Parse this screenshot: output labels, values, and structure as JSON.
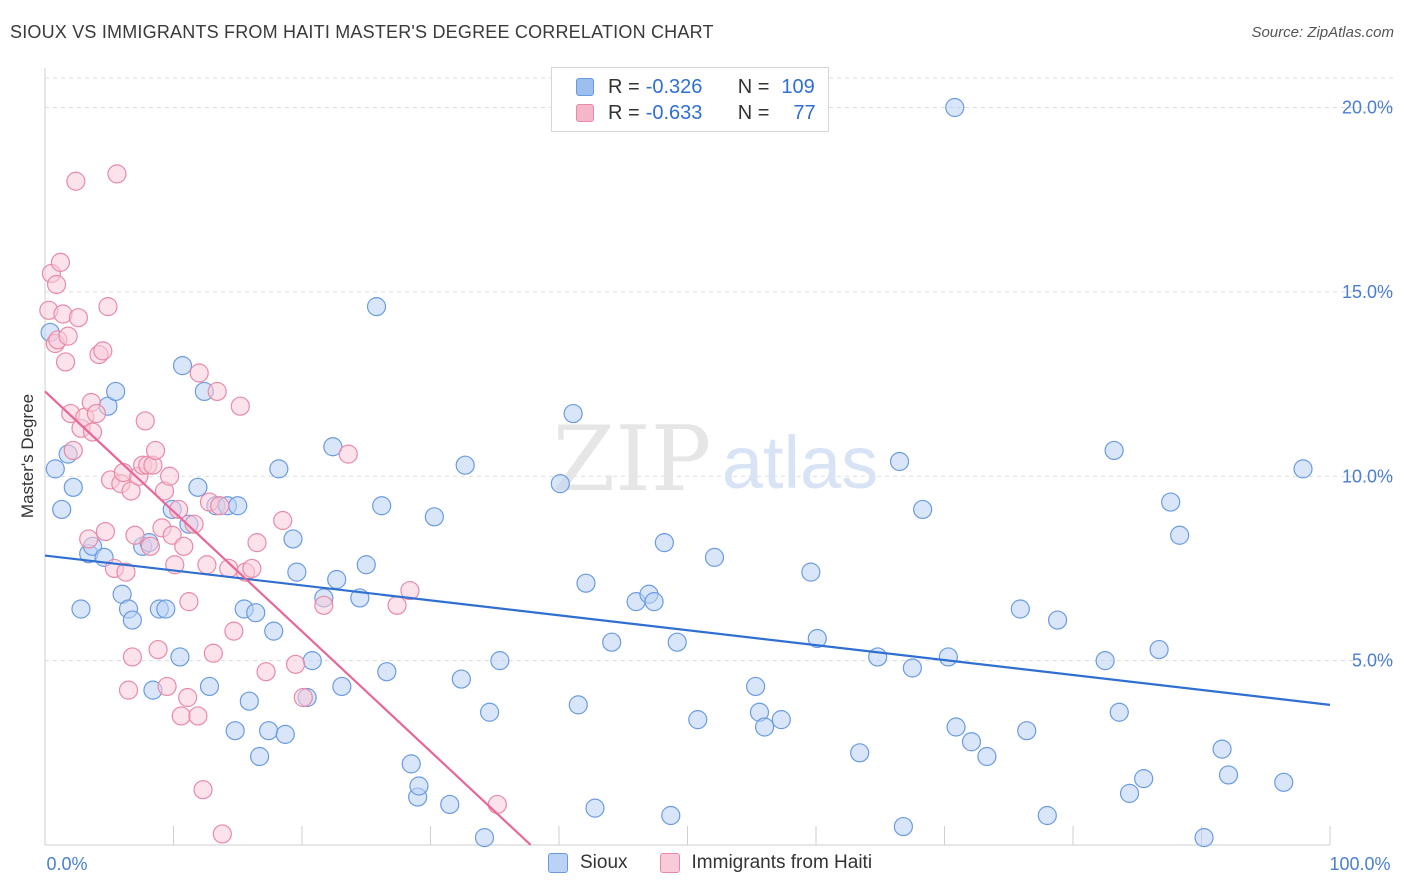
{
  "header": {
    "title": "SIOUX VS IMMIGRANTS FROM HAITI MASTER'S DEGREE CORRELATION CHART",
    "source": "Source: ZipAtlas.com"
  },
  "legend": {
    "rows": [
      {
        "r_label": "R = ",
        "r_value": "-0.326",
        "n_label": "N = ",
        "n_value": "109",
        "color": "#9dbff0",
        "border": "#6a9be0"
      },
      {
        "r_label": "R = ",
        "r_value": "-0.633",
        "n_label": "N = ",
        "n_value": "77",
        "color": "#f6b6c9",
        "border": "#e88aa6"
      }
    ]
  },
  "bottom_legend": [
    {
      "label": "Sioux",
      "color": "#b9d2f5",
      "border": "#6a9be0"
    },
    {
      "label": "Immigrants from Haiti",
      "color": "#f9cbd8",
      "border": "#e88aa6"
    }
  ],
  "watermark": {
    "zip": "ZIP",
    "atlas": "atlas"
  },
  "chart_data": {
    "type": "scatter",
    "title": "SIOUX VS IMMIGRANTS FROM HAITI MASTER'S DEGREE CORRELATION CHART",
    "xlabel": "",
    "ylabel": "Master's Degree",
    "xlim": [
      0,
      100
    ],
    "ylim": [
      0,
      20.8
    ],
    "x_tick_labels": [
      {
        "value": 0,
        "label": "0.0%"
      },
      {
        "value": 100,
        "label": "100.0%"
      }
    ],
    "y_tick_labels": [
      {
        "value": 5,
        "label": "5.0%"
      },
      {
        "value": 10,
        "label": "10.0%"
      },
      {
        "value": 15,
        "label": "15.0%"
      },
      {
        "value": 20,
        "label": "20.0%"
      }
    ],
    "series": [
      {
        "name": "Sioux",
        "color": "#6a9be0",
        "fill": "#b9d2f5",
        "trend": {
          "x0": 0,
          "y0": 7.85,
          "x1": 100,
          "y1": 3.8,
          "color": "#2f6fd1"
        },
        "points": [
          [
            0.4,
            13.9
          ],
          [
            0.8,
            10.2
          ],
          [
            1.3,
            9.1
          ],
          [
            1.8,
            10.6
          ],
          [
            2.2,
            9.7
          ],
          [
            2.8,
            6.4
          ],
          [
            3.4,
            7.9
          ],
          [
            3.7,
            8.1
          ],
          [
            4.6,
            7.8
          ],
          [
            4.9,
            11.9
          ],
          [
            5.5,
            12.3
          ],
          [
            6.0,
            6.8
          ],
          [
            6.5,
            6.4
          ],
          [
            6.8,
            6.1
          ],
          [
            7.6,
            8.1
          ],
          [
            8.1,
            8.2
          ],
          [
            8.4,
            4.2
          ],
          [
            8.9,
            6.4
          ],
          [
            9.4,
            6.4
          ],
          [
            9.9,
            9.1
          ],
          [
            10.5,
            5.1
          ],
          [
            10.7,
            13.0
          ],
          [
            11.2,
            8.7
          ],
          [
            11.9,
            9.7
          ],
          [
            12.4,
            12.3
          ],
          [
            12.8,
            4.3
          ],
          [
            13.3,
            9.2
          ],
          [
            14.2,
            9.2
          ],
          [
            14.8,
            3.1
          ],
          [
            15.0,
            9.2
          ],
          [
            15.5,
            6.4
          ],
          [
            15.9,
            3.9
          ],
          [
            16.4,
            6.3
          ],
          [
            16.7,
            2.4
          ],
          [
            17.4,
            3.1
          ],
          [
            17.8,
            5.8
          ],
          [
            18.2,
            10.2
          ],
          [
            18.7,
            3.0
          ],
          [
            19.3,
            8.3
          ],
          [
            19.6,
            7.4
          ],
          [
            20.4,
            4.0
          ],
          [
            20.8,
            5.0
          ],
          [
            21.7,
            6.7
          ],
          [
            22.4,
            10.8
          ],
          [
            22.7,
            7.2
          ],
          [
            23.1,
            4.3
          ],
          [
            24.5,
            6.7
          ],
          [
            25.0,
            7.6
          ],
          [
            25.8,
            14.6
          ],
          [
            26.2,
            9.2
          ],
          [
            26.6,
            4.7
          ],
          [
            28.5,
            2.2
          ],
          [
            29.0,
            1.3
          ],
          [
            29.1,
            1.6
          ],
          [
            30.3,
            8.9
          ],
          [
            31.5,
            1.1
          ],
          [
            32.4,
            4.5
          ],
          [
            32.7,
            10.3
          ],
          [
            34.2,
            0.2
          ],
          [
            34.6,
            3.6
          ],
          [
            35.4,
            5.0
          ],
          [
            40.1,
            9.8
          ],
          [
            41.1,
            11.7
          ],
          [
            41.5,
            3.8
          ],
          [
            42.1,
            7.1
          ],
          [
            42.8,
            1.0
          ],
          [
            44.1,
            5.5
          ],
          [
            46.0,
            6.6
          ],
          [
            47.0,
            6.8
          ],
          [
            47.4,
            6.6
          ],
          [
            48.2,
            8.2
          ],
          [
            48.7,
            0.8
          ],
          [
            49.2,
            5.5
          ],
          [
            50.8,
            3.4
          ],
          [
            52.1,
            7.8
          ],
          [
            55.3,
            4.3
          ],
          [
            55.6,
            3.6
          ],
          [
            56.0,
            3.2
          ],
          [
            57.3,
            3.4
          ],
          [
            59.6,
            7.4
          ],
          [
            60.1,
            5.6
          ],
          [
            63.4,
            2.5
          ],
          [
            64.8,
            5.1
          ],
          [
            66.5,
            10.4
          ],
          [
            66.8,
            0.5
          ],
          [
            67.5,
            4.8
          ],
          [
            68.3,
            9.1
          ],
          [
            70.3,
            5.1
          ],
          [
            70.8,
            20.0
          ],
          [
            70.9,
            3.2
          ],
          [
            72.1,
            2.8
          ],
          [
            73.3,
            2.4
          ],
          [
            75.9,
            6.4
          ],
          [
            76.4,
            3.1
          ],
          [
            78.0,
            0.8
          ],
          [
            78.8,
            6.1
          ],
          [
            82.5,
            5.0
          ],
          [
            83.2,
            10.7
          ],
          [
            83.6,
            3.6
          ],
          [
            84.4,
            1.4
          ],
          [
            85.5,
            1.8
          ],
          [
            86.7,
            5.3
          ],
          [
            87.6,
            9.3
          ],
          [
            88.3,
            8.4
          ],
          [
            90.2,
            0.2
          ],
          [
            91.6,
            2.6
          ],
          [
            92.1,
            1.9
          ],
          [
            96.4,
            1.7
          ],
          [
            97.9,
            10.2
          ]
        ]
      },
      {
        "name": "Immigrants from Haiti",
        "color": "#e88aa6",
        "fill": "#f9cbd8",
        "trend": {
          "x0": 0,
          "y0": 12.3,
          "x1": 37.8,
          "y1": 0,
          "color": "#e8679a"
        },
        "points": [
          [
            0.3,
            14.5
          ],
          [
            0.5,
            15.5
          ],
          [
            0.8,
            13.6
          ],
          [
            0.9,
            15.2
          ],
          [
            1.0,
            13.7
          ],
          [
            1.2,
            15.8
          ],
          [
            1.4,
            14.4
          ],
          [
            1.6,
            13.1
          ],
          [
            1.8,
            13.8
          ],
          [
            2.0,
            11.7
          ],
          [
            2.2,
            10.7
          ],
          [
            2.4,
            18.0
          ],
          [
            2.6,
            14.3
          ],
          [
            2.8,
            11.3
          ],
          [
            3.1,
            11.6
          ],
          [
            3.4,
            8.3
          ],
          [
            3.6,
            12.0
          ],
          [
            3.7,
            11.2
          ],
          [
            4.0,
            11.7
          ],
          [
            4.2,
            13.3
          ],
          [
            4.5,
            13.4
          ],
          [
            4.7,
            8.5
          ],
          [
            4.9,
            14.6
          ],
          [
            5.1,
            9.9
          ],
          [
            5.4,
            7.5
          ],
          [
            5.6,
            18.2
          ],
          [
            5.9,
            9.8
          ],
          [
            6.1,
            10.1
          ],
          [
            6.3,
            7.4
          ],
          [
            6.5,
            4.2
          ],
          [
            6.7,
            9.6
          ],
          [
            6.8,
            5.1
          ],
          [
            7.0,
            8.4
          ],
          [
            7.3,
            10.0
          ],
          [
            7.6,
            10.3
          ],
          [
            7.8,
            11.5
          ],
          [
            8.0,
            10.3
          ],
          [
            8.2,
            8.1
          ],
          [
            8.4,
            10.3
          ],
          [
            8.6,
            10.7
          ],
          [
            8.8,
            5.3
          ],
          [
            9.1,
            8.6
          ],
          [
            9.3,
            9.6
          ],
          [
            9.5,
            4.3
          ],
          [
            9.7,
            10.0
          ],
          [
            9.9,
            8.4
          ],
          [
            10.1,
            7.6
          ],
          [
            10.4,
            9.1
          ],
          [
            10.6,
            3.5
          ],
          [
            10.8,
            8.1
          ],
          [
            11.1,
            4.0
          ],
          [
            11.2,
            6.6
          ],
          [
            11.6,
            8.7
          ],
          [
            11.9,
            3.5
          ],
          [
            12.0,
            12.8
          ],
          [
            12.3,
            1.5
          ],
          [
            12.6,
            7.6
          ],
          [
            12.8,
            9.3
          ],
          [
            13.1,
            5.2
          ],
          [
            13.4,
            12.3
          ],
          [
            13.6,
            9.2
          ],
          [
            13.8,
            0.3
          ],
          [
            14.3,
            7.5
          ],
          [
            14.7,
            5.8
          ],
          [
            15.2,
            11.9
          ],
          [
            15.6,
            7.4
          ],
          [
            16.1,
            7.5
          ],
          [
            16.5,
            8.2
          ],
          [
            17.2,
            4.7
          ],
          [
            18.5,
            8.8
          ],
          [
            19.5,
            4.9
          ],
          [
            20.1,
            4.0
          ],
          [
            21.7,
            6.5
          ],
          [
            23.6,
            10.6
          ],
          [
            27.4,
            6.5
          ],
          [
            28.4,
            6.9
          ],
          [
            35.2,
            1.1
          ]
        ]
      }
    ]
  }
}
